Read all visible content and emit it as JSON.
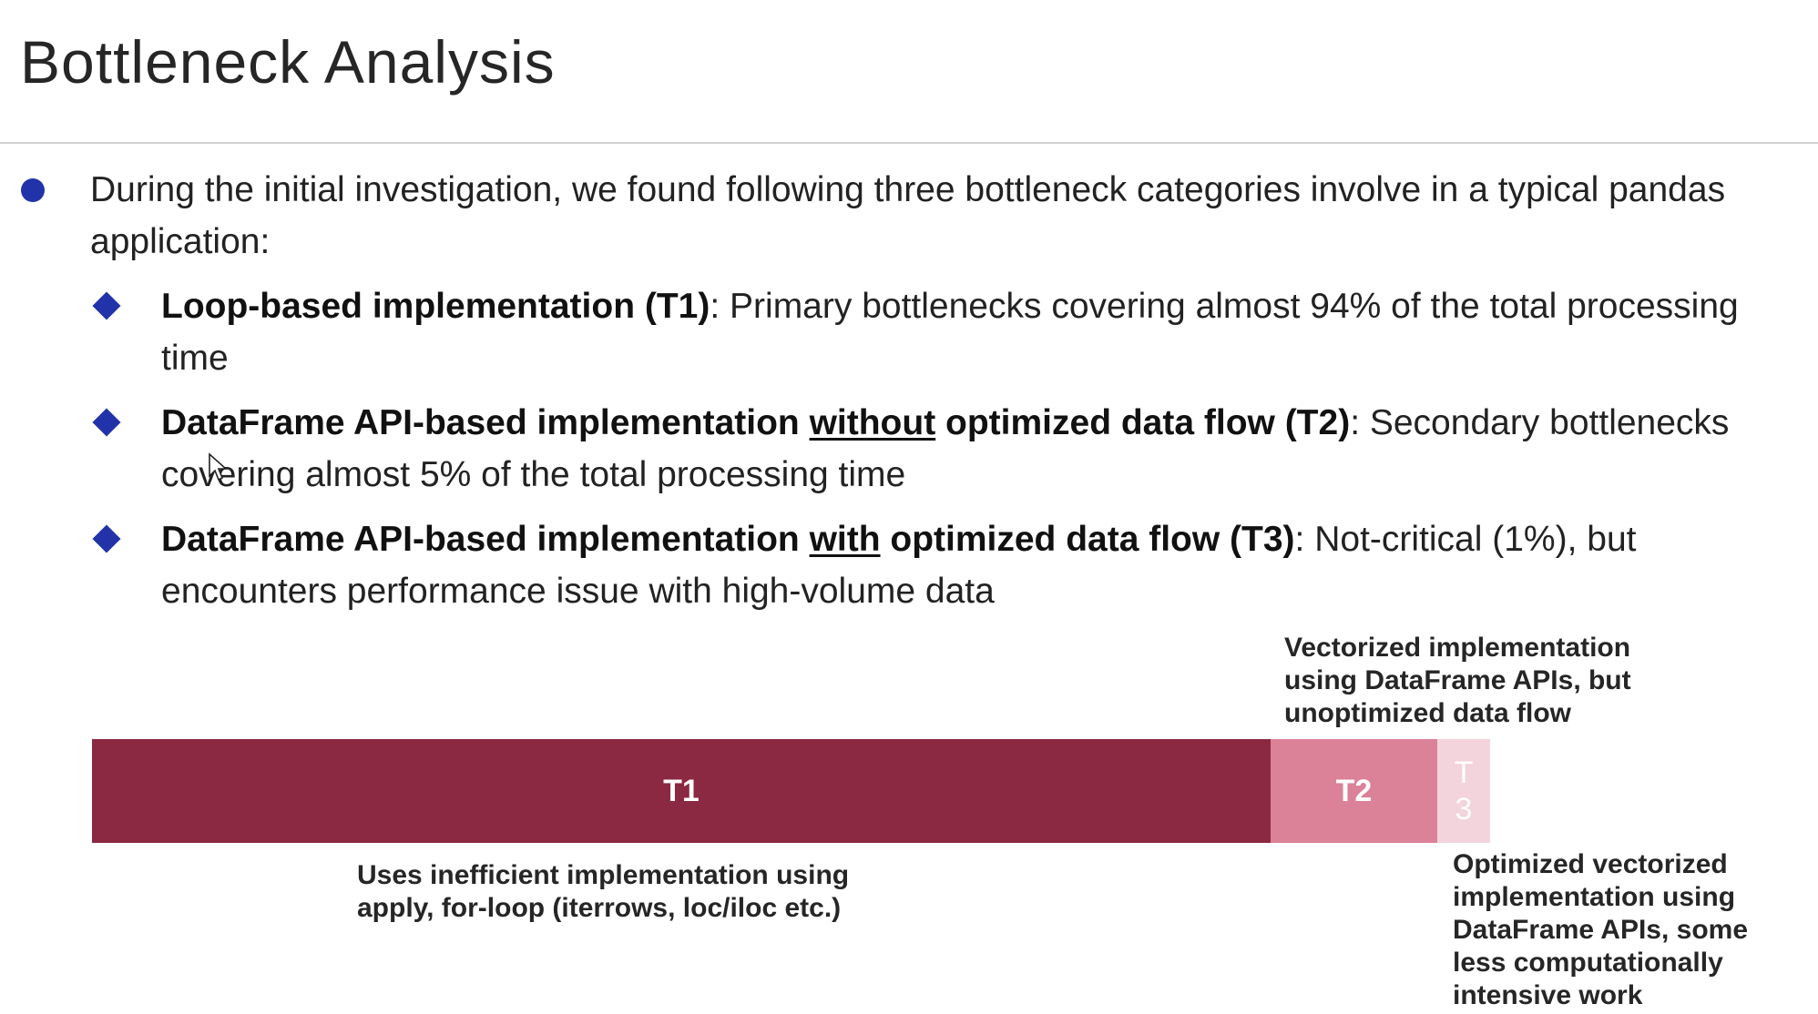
{
  "title": "Bottleneck Analysis",
  "intro": "During the initial investigation, we found following three bottleneck categories involve in a typical pandas application:",
  "items": [
    {
      "bold_a": "Loop-based implementation (T1)",
      "underlined": "",
      "bold_b": "",
      "rest": ": Primary bottlenecks covering almost 94% of the total processing time"
    },
    {
      "bold_a": "DataFrame API-based implementation ",
      "underlined": "without",
      "bold_b": " optimized data flow (T2)",
      "rest": ": Secondary bottlenecks covering almost 5% of the total processing time"
    },
    {
      "bold_a": "DataFrame API-based implementation ",
      "underlined": "with",
      "bold_b": " optimized data flow (T3)",
      "rest": ": Not-critical (1%), but encounters performance issue with high-volume data"
    }
  ],
  "chart_data": {
    "type": "bar",
    "orientation": "horizontal-stacked",
    "categories": [
      "T1",
      "T2",
      "T3"
    ],
    "values": [
      94,
      5,
      1
    ],
    "labels": {
      "T1": "T1",
      "T2": "T2",
      "T3_top": "T",
      "T3_bottom": "3"
    },
    "colors": {
      "T1": "#8b2842",
      "T2": "#db8198",
      "T3": "#f3d3dc"
    },
    "annotations": {
      "t1": "Uses inefficient implementation using apply, for-loop (iterrows, loc/iloc etc.)",
      "t2": "Vectorized implementation using DataFrame APIs, but unoptimized data flow",
      "t3": "Optimized vectorized implementation using DataFrame APIs, some less computationally intensive work"
    }
  }
}
